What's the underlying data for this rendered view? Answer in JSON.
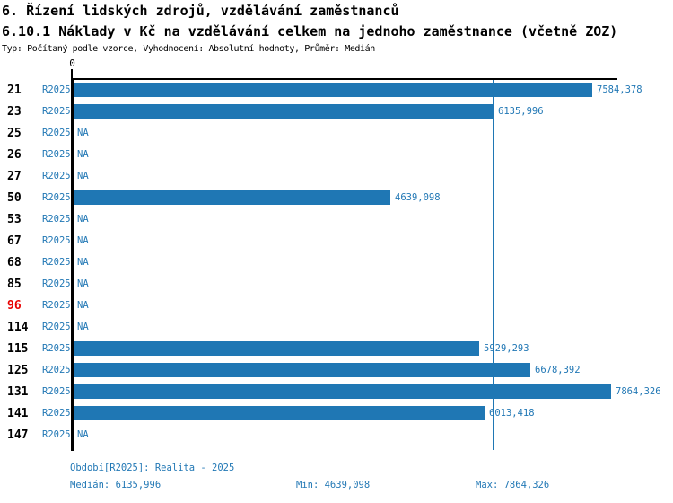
{
  "header": {
    "title1": "6. Řízení lidských zdrojů, vzdělávání zaměstnanců",
    "title2": "6.10.1 Náklady v Kč na vzdělávání celkem na jednoho zaměstnance (včetně ZOZ)",
    "subtitle": "Typ: Počítaný podle vzorce, Vyhodnocení: Absolutní hodnoty, Průměr: Medián"
  },
  "chart_data": {
    "type": "bar",
    "orientation": "horizontal",
    "title": "6.10.1 Náklady v Kč na vzdělávání celkem na jednoho zaměstnance (včetně ZOZ)",
    "series_label": "R2025",
    "axis": {
      "zero_label": "0",
      "xlim": [
        0,
        7940
      ],
      "grid": false
    },
    "median_value": 6135.996,
    "rows": [
      {
        "id": "21",
        "series": "R2025",
        "value": 7584.378,
        "label": "7584,378",
        "highlight": false
      },
      {
        "id": "23",
        "series": "R2025",
        "value": 6135.996,
        "label": "6135,996",
        "highlight": false
      },
      {
        "id": "25",
        "series": "R2025",
        "value": null,
        "label": "NA",
        "highlight": false
      },
      {
        "id": "26",
        "series": "R2025",
        "value": null,
        "label": "NA",
        "highlight": false
      },
      {
        "id": "27",
        "series": "R2025",
        "value": null,
        "label": "NA",
        "highlight": false
      },
      {
        "id": "50",
        "series": "R2025",
        "value": 4639.098,
        "label": "4639,098",
        "highlight": false
      },
      {
        "id": "53",
        "series": "R2025",
        "value": null,
        "label": "NA",
        "highlight": false
      },
      {
        "id": "67",
        "series": "R2025",
        "value": null,
        "label": "NA",
        "highlight": false
      },
      {
        "id": "68",
        "series": "R2025",
        "value": null,
        "label": "NA",
        "highlight": false
      },
      {
        "id": "85",
        "series": "R2025",
        "value": null,
        "label": "NA",
        "highlight": false
      },
      {
        "id": "96",
        "series": "R2025",
        "value": null,
        "label": "NA",
        "highlight": true
      },
      {
        "id": "114",
        "series": "R2025",
        "value": null,
        "label": "NA",
        "highlight": false
      },
      {
        "id": "115",
        "series": "R2025",
        "value": 5929.293,
        "label": "5929,293",
        "highlight": false
      },
      {
        "id": "125",
        "series": "R2025",
        "value": 6678.392,
        "label": "6678,392",
        "highlight": false
      },
      {
        "id": "131",
        "series": "R2025",
        "value": 7864.326,
        "label": "7864,326",
        "highlight": false
      },
      {
        "id": "141",
        "series": "R2025",
        "value": 6013.418,
        "label": "6013,418",
        "highlight": false
      },
      {
        "id": "147",
        "series": "R2025",
        "value": null,
        "label": "NA",
        "highlight": false
      }
    ],
    "footer": {
      "period": "Období[R2025]: Realita - 2025",
      "median": "Medián: 6135,996",
      "min": "Min: 4639,098",
      "max": "Max: 7864,326"
    }
  },
  "colors": {
    "bar": "#1f77b4",
    "blue_text": "#2278b5",
    "median_line": "#1f77b4",
    "highlight_red": "#e80000",
    "axis": "#000000"
  }
}
